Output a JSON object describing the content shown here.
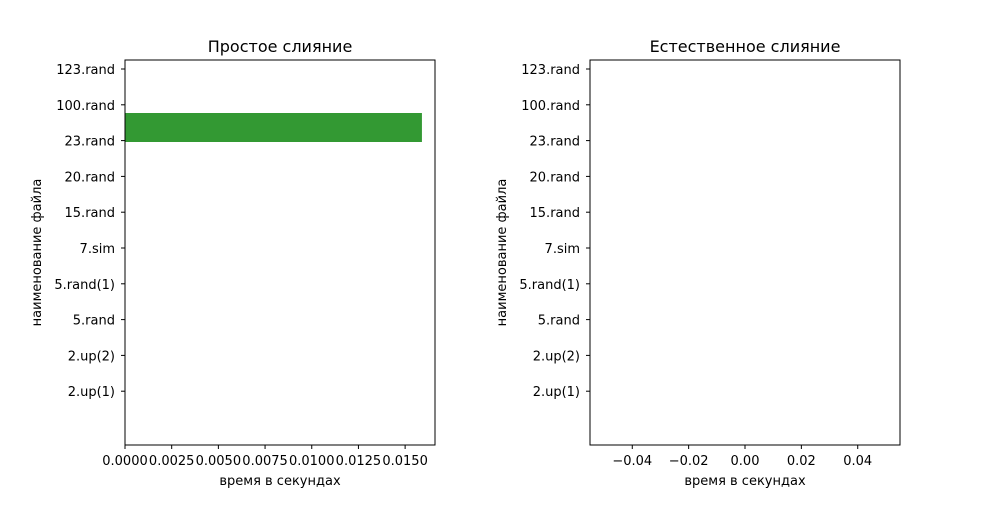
{
  "chart_data": [
    {
      "type": "bar",
      "orientation": "horizontal",
      "title": "Простое слияние",
      "xlabel": "время в секундах",
      "ylabel": "наименование файла",
      "categories": [
        "123.rand",
        "100.rand",
        "23.rand",
        "20.rand",
        "15.rand",
        "7.sim",
        "5.rand(1)",
        "5.rand",
        "2.up(2)",
        "2.up(1)"
      ],
      "values": [
        null,
        null,
        0.0159,
        null,
        null,
        null,
        null,
        null,
        null,
        null
      ],
      "xlim": [
        0,
        0.0166
      ],
      "xticks": [
        "0.0000",
        "0.0025",
        "0.0050",
        "0.0075",
        "0.0100",
        "0.0125",
        "0.0150"
      ],
      "grid": false
    },
    {
      "type": "bar",
      "orientation": "horizontal",
      "title": "Естественное слияние",
      "xlabel": "время в секундах",
      "ylabel": "наименование файла",
      "categories": [
        "123.rand",
        "100.rand",
        "23.rand",
        "20.rand",
        "15.rand",
        "7.sim",
        "5.rand(1)",
        "5.rand",
        "2.up(2)",
        "2.up(1)"
      ],
      "values": [
        null,
        null,
        null,
        null,
        null,
        null,
        null,
        null,
        null,
        null
      ],
      "xlim": [
        -0.055,
        0.055
      ],
      "xticks": [
        "−0.04",
        "−0.02",
        "0.00",
        "0.02",
        "0.04"
      ],
      "grid": false
    }
  ],
  "colors": {
    "bar": "#339933"
  }
}
